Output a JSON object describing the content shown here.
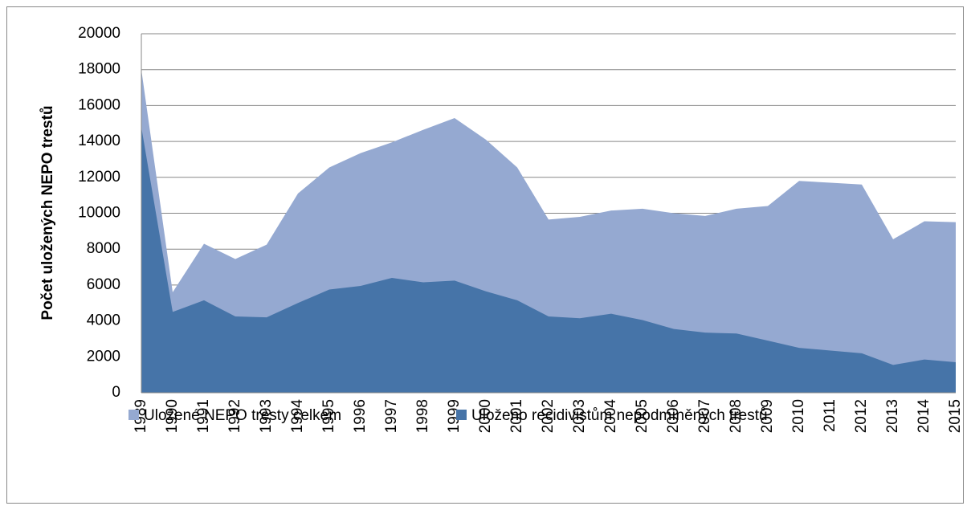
{
  "chart_data": {
    "type": "area",
    "ylabel": "Počet uložených NEPO trestů",
    "categories": [
      "1989",
      "1990",
      "1991",
      "1992",
      "1993",
      "1994",
      "1995",
      "1996",
      "1997",
      "1998",
      "1999",
      "2000",
      "2001",
      "2002",
      "2003",
      "2004",
      "2005",
      "2006",
      "2007",
      "2008",
      "2009",
      "2010",
      "2011",
      "2012",
      "2013",
      "2014",
      "2015"
    ],
    "series": [
      {
        "name": "Uložené NEPO tresty celkem",
        "color": "#95a9d1",
        "values": [
          18000,
          5600,
          8300,
          7450,
          8250,
          11100,
          12550,
          13350,
          13950,
          14650,
          15300,
          14100,
          12550,
          9650,
          9800,
          10150,
          10250,
          10000,
          9850,
          10250,
          10400,
          11800,
          11700,
          11600,
          8550,
          9550,
          9500
        ]
      },
      {
        "name": "Uloženo recidivistům nepodmíněných trestů",
        "color": "#4674a8",
        "values": [
          14800,
          4500,
          5150,
          4250,
          4200,
          5000,
          5750,
          5950,
          6400,
          6150,
          6250,
          5650,
          5150,
          4250,
          4150,
          4400,
          4050,
          3550,
          3350,
          3300,
          2900,
          2500,
          2350,
          2200,
          1550,
          1850,
          1700
        ]
      }
    ],
    "ylim": [
      0,
      20000
    ],
    "yticks": [
      0,
      2000,
      4000,
      6000,
      8000,
      10000,
      12000,
      14000,
      16000,
      18000,
      20000
    ],
    "grid": true,
    "legend": "bottom"
  }
}
